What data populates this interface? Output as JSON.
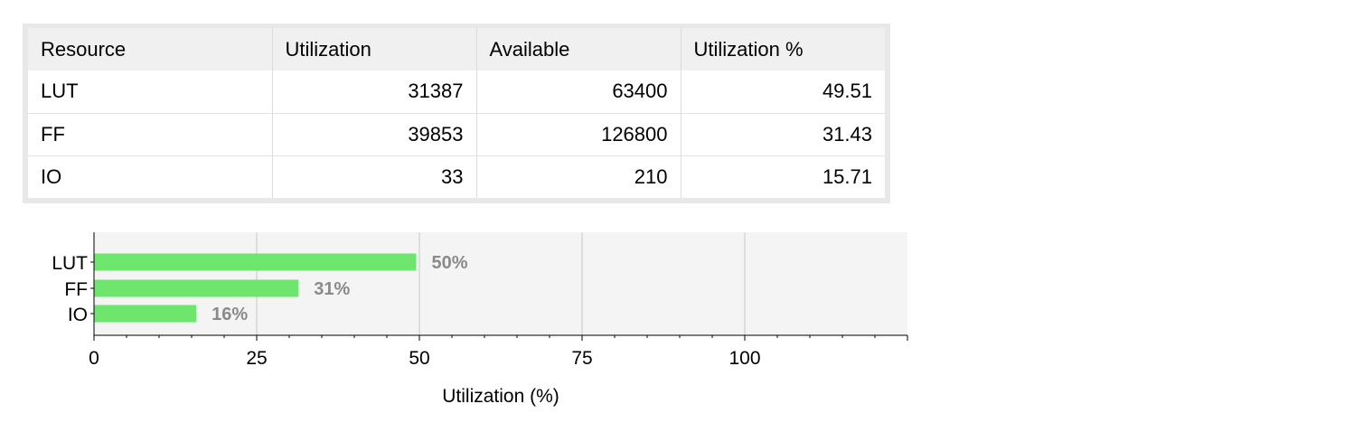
{
  "table": {
    "headers": [
      "Resource",
      "Utilization",
      "Available",
      "Utilization %"
    ],
    "rows": [
      {
        "resource": "LUT",
        "utilization": "31387",
        "available": "63400",
        "percent": "49.51"
      },
      {
        "resource": "FF",
        "utilization": "39853",
        "available": "126800",
        "percent": "31.43"
      },
      {
        "resource": "IO",
        "utilization": "33",
        "available": "210",
        "percent": "15.71"
      }
    ]
  },
  "chart_data": {
    "type": "bar",
    "orientation": "horizontal",
    "categories": [
      "LUT",
      "FF",
      "IO"
    ],
    "values": [
      49.51,
      31.43,
      15.71
    ],
    "data_labels": [
      "50%",
      "31%",
      "16%"
    ],
    "xlabel": "Utilization (%)",
    "ylabel": "",
    "xlim": [
      0,
      125
    ],
    "x_ticks": [
      0,
      25,
      50,
      75,
      100
    ],
    "x_tick_labels": [
      "0",
      "25",
      "50",
      "75",
      "100"
    ],
    "grid": true,
    "legend": "none",
    "bar_color": "#6ee66e",
    "label_color": "#8a8a8a",
    "plot_background": "#f4f4f4"
  }
}
